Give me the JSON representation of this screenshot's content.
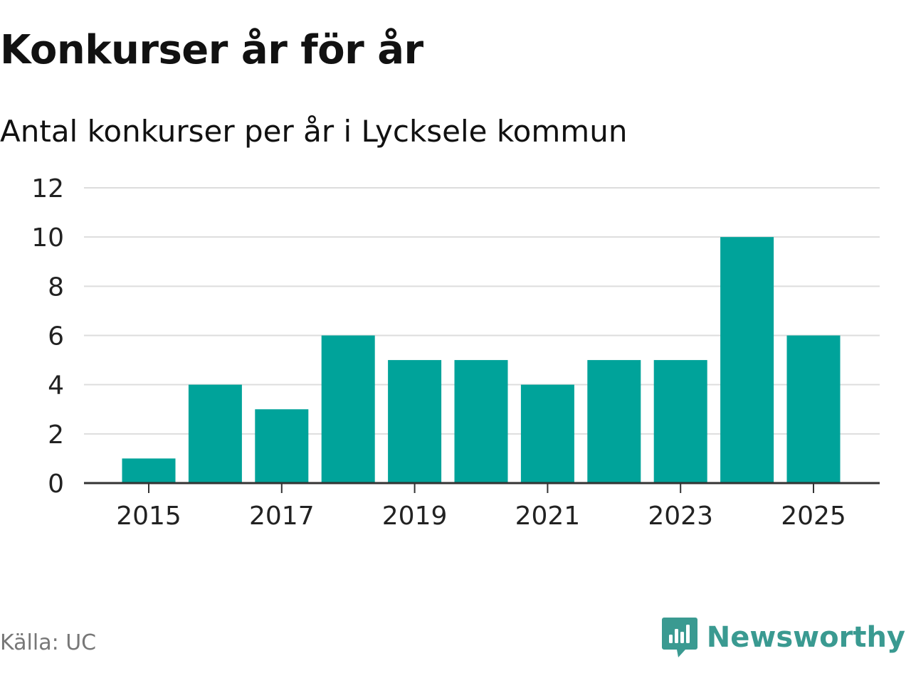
{
  "chart_data": {
    "type": "bar",
    "title": "Konkurser år för år",
    "subtitle": "Antal konkurser per år i Lycksele kommun",
    "categories": [
      "2015",
      "2016",
      "2017",
      "2018",
      "2019",
      "2020",
      "2021",
      "2022",
      "2023",
      "2024",
      "2025"
    ],
    "values": [
      1,
      4,
      3,
      6,
      5,
      5,
      4,
      5,
      5,
      10,
      6
    ],
    "x_tick_labels": [
      "2015",
      "2017",
      "2019",
      "2021",
      "2023",
      "2025"
    ],
    "y_ticks": [
      0,
      2,
      4,
      6,
      8,
      10,
      12
    ],
    "ylim": [
      0,
      12
    ],
    "xlabel": "",
    "ylabel": "",
    "grid": true,
    "bar_color": "#00a39a"
  },
  "footer": {
    "source": "Källa: UC",
    "brand": "Newsworthy"
  },
  "colors": {
    "bar": "#00a39a",
    "brand": "#3a9a91",
    "grid": "#dddddd",
    "axis": "#333333",
    "source": "#777777"
  }
}
